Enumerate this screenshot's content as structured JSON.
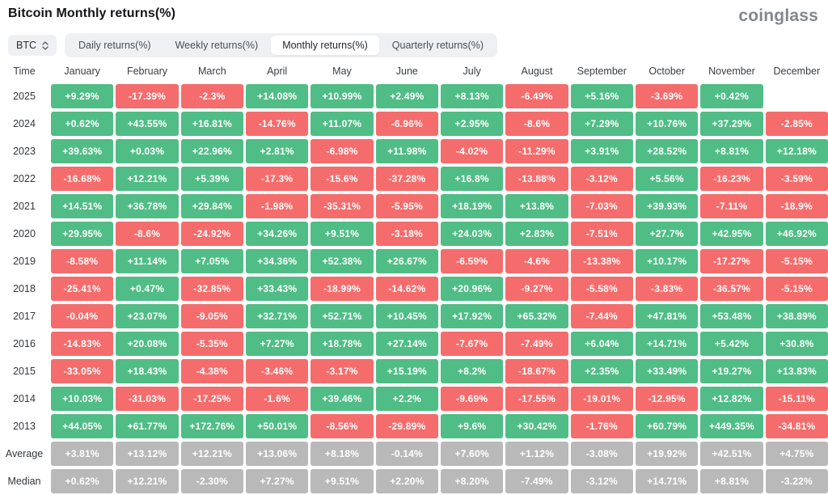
{
  "header": {
    "title": "Bitcoin Monthly returns(%)",
    "logo": "coinglass"
  },
  "controls": {
    "symbol_select": {
      "value": "BTC"
    },
    "tabs": [
      {
        "label": "Daily returns(%)",
        "active": false
      },
      {
        "label": "Weekly returns(%)",
        "active": false
      },
      {
        "label": "Monthly returns(%)",
        "active": true
      },
      {
        "label": "Quarterly returns(%)",
        "active": false
      }
    ]
  },
  "colors": {
    "positive": "#50BD86",
    "negative": "#F56C6C",
    "summary": "#B9B9B9"
  },
  "chart_data": {
    "type": "heatmap",
    "title": "Bitcoin Monthly returns(%)",
    "columns": [
      "Time",
      "January",
      "February",
      "March",
      "April",
      "May",
      "June",
      "July",
      "August",
      "September",
      "October",
      "November",
      "December"
    ],
    "rows": [
      {
        "label": "2025",
        "type": "year",
        "values": [
          "+9.29%",
          "-17.39%",
          "-2.3%",
          "+14.08%",
          "+10.99%",
          "+2.49%",
          "+8.13%",
          "-6.49%",
          "+5.16%",
          "-3.69%",
          "+0.42%",
          ""
        ]
      },
      {
        "label": "2024",
        "type": "year",
        "values": [
          "+0.62%",
          "+43.55%",
          "+16.81%",
          "-14.76%",
          "+11.07%",
          "-6.96%",
          "+2.95%",
          "-8.6%",
          "+7.29%",
          "+10.76%",
          "+37.29%",
          "-2.85%"
        ]
      },
      {
        "label": "2023",
        "type": "year",
        "values": [
          "+39.63%",
          "+0.03%",
          "+22.96%",
          "+2.81%",
          "-6.98%",
          "+11.98%",
          "-4.02%",
          "-11.29%",
          "+3.91%",
          "+28.52%",
          "+8.81%",
          "+12.18%"
        ]
      },
      {
        "label": "2022",
        "type": "year",
        "values": [
          "-16.68%",
          "+12.21%",
          "+5.39%",
          "-17.3%",
          "-15.6%",
          "-37.28%",
          "+16.8%",
          "-13.88%",
          "-3.12%",
          "+5.56%",
          "-16.23%",
          "-3.59%"
        ]
      },
      {
        "label": "2021",
        "type": "year",
        "values": [
          "+14.51%",
          "+36.78%",
          "+29.84%",
          "-1.98%",
          "-35.31%",
          "-5.95%",
          "+18.19%",
          "+13.8%",
          "-7.03%",
          "+39.93%",
          "-7.11%",
          "-18.9%"
        ]
      },
      {
        "label": "2020",
        "type": "year",
        "values": [
          "+29.95%",
          "-8.6%",
          "-24.92%",
          "+34.26%",
          "+9.51%",
          "-3.18%",
          "+24.03%",
          "+2.83%",
          "-7.51%",
          "+27.7%",
          "+42.95%",
          "+46.92%"
        ]
      },
      {
        "label": "2019",
        "type": "year",
        "values": [
          "-8.58%",
          "+11.14%",
          "+7.05%",
          "+34.36%",
          "+52.38%",
          "+26.67%",
          "-6.59%",
          "-4.6%",
          "-13.38%",
          "+10.17%",
          "-17.27%",
          "-5.15%"
        ]
      },
      {
        "label": "2018",
        "type": "year",
        "values": [
          "-25.41%",
          "+0.47%",
          "-32.85%",
          "+33.43%",
          "-18.99%",
          "-14.62%",
          "+20.96%",
          "-9.27%",
          "-5.58%",
          "-3.83%",
          "-36.57%",
          "-5.15%"
        ]
      },
      {
        "label": "2017",
        "type": "year",
        "values": [
          "-0.04%",
          "+23.07%",
          "-9.05%",
          "+32.71%",
          "+52.71%",
          "+10.45%",
          "+17.92%",
          "+65.32%",
          "-7.44%",
          "+47.81%",
          "+53.48%",
          "+38.89%"
        ]
      },
      {
        "label": "2016",
        "type": "year",
        "values": [
          "-14.83%",
          "+20.08%",
          "-5.35%",
          "+7.27%",
          "+18.78%",
          "+27.14%",
          "-7.67%",
          "-7.49%",
          "+6.04%",
          "+14.71%",
          "+5.42%",
          "+30.8%"
        ]
      },
      {
        "label": "2015",
        "type": "year",
        "values": [
          "-33.05%",
          "+18.43%",
          "-4.38%",
          "-3.46%",
          "-3.17%",
          "+15.19%",
          "+8.2%",
          "-18.67%",
          "+2.35%",
          "+33.49%",
          "+19.27%",
          "+13.83%"
        ]
      },
      {
        "label": "2014",
        "type": "year",
        "values": [
          "+10.03%",
          "-31.03%",
          "-17.25%",
          "-1.6%",
          "+39.46%",
          "+2.2%",
          "-9.69%",
          "-17.55%",
          "-19.01%",
          "-12.95%",
          "+12.82%",
          "-15.11%"
        ]
      },
      {
        "label": "2013",
        "type": "year",
        "values": [
          "+44.05%",
          "+61.77%",
          "+172.76%",
          "+50.01%",
          "-8.56%",
          "-29.89%",
          "+9.6%",
          "+30.42%",
          "-1.76%",
          "+60.79%",
          "+449.35%",
          "-34.81%"
        ]
      },
      {
        "label": "Average",
        "type": "summary",
        "values": [
          "+3.81%",
          "+13.12%",
          "+12.21%",
          "+13.06%",
          "+8.18%",
          "-0.14%",
          "+7.60%",
          "+1.12%",
          "-3.08%",
          "+19.92%",
          "+42.51%",
          "+4.75%"
        ]
      },
      {
        "label": "Median",
        "type": "summary",
        "values": [
          "+0.62%",
          "+12.21%",
          "-2.30%",
          "+7.27%",
          "+9.51%",
          "+2.20%",
          "+8.20%",
          "-7.49%",
          "-3.12%",
          "+14.71%",
          "+8.81%",
          "-3.22%"
        ]
      }
    ]
  }
}
